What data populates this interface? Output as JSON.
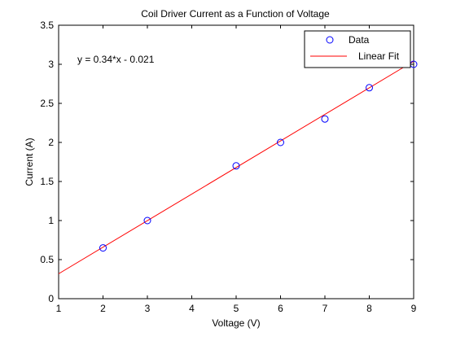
{
  "chart_data": {
    "type": "scatter",
    "title": "Coil Driver Current as a Function of Voltage",
    "xlabel": "Voltage (V)",
    "ylabel": "Current (A)",
    "xlim": [
      1,
      9
    ],
    "ylim": [
      0,
      3.5
    ],
    "x_ticks": [
      "1",
      "2",
      "3",
      "4",
      "5",
      "6",
      "7",
      "8",
      "9"
    ],
    "y_ticks": [
      "0",
      "0.5",
      "1",
      "1.5",
      "2",
      "2.5",
      "3",
      "3.5"
    ],
    "grid": false,
    "legend_position": "top-right",
    "annotation": "y = 0.34*x - 0.021",
    "series": [
      {
        "name": "Data",
        "kind": "markers",
        "marker": "circle",
        "color": "#0000ff",
        "x": [
          2,
          3,
          5,
          6,
          7,
          8,
          9
        ],
        "y": [
          0.65,
          1.0,
          1.7,
          2.0,
          2.3,
          2.7,
          3.0
        ]
      },
      {
        "name": "Linear Fit",
        "kind": "line",
        "color": "#ff0000",
        "slope": 0.34,
        "intercept": -0.021
      }
    ]
  }
}
